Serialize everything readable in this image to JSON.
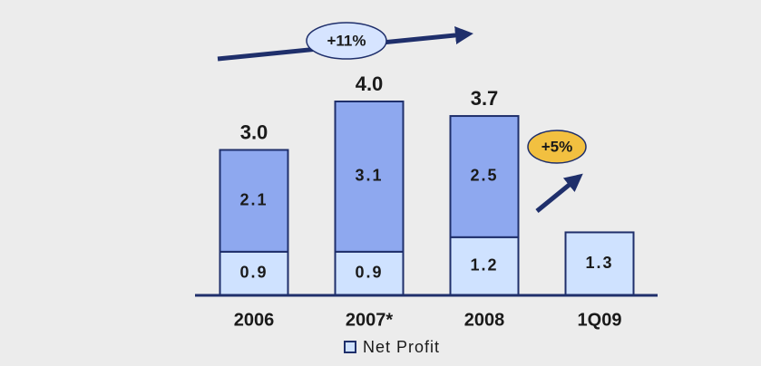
{
  "chart_data": {
    "type": "stacked_bar",
    "categories": [
      "2006",
      "2007*",
      "2008",
      "1Q09"
    ],
    "series": [
      {
        "name": "Net Profit",
        "color": "#cfe2ff",
        "values": [
          0.9,
          0.9,
          1.2,
          1.3
        ]
      },
      {
        "color": "#8ea8ef",
        "values": [
          2.1,
          3.1,
          2.5,
          null
        ]
      }
    ],
    "totals": {
      "values": [
        3.0,
        4.0,
        3.7,
        null
      ],
      "value_labels": [
        "3.0",
        "4.0",
        "3.7",
        null
      ]
    },
    "annotations": [
      {
        "text": "+11%",
        "color": "#d6e4ff"
      },
      {
        "text": "+5%",
        "color": "#f2c040"
      }
    ],
    "legend": "bottom"
  }
}
